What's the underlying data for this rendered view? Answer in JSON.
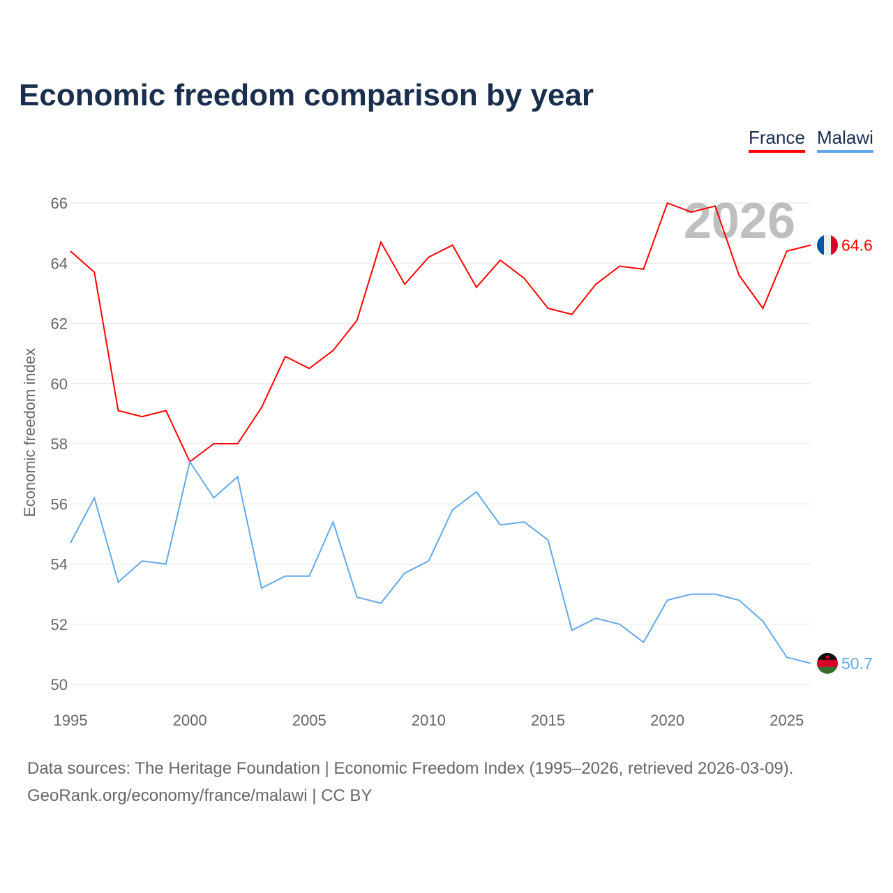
{
  "chart_data": {
    "type": "line",
    "title": "Economic freedom comparison by year",
    "xlabel": "",
    "ylabel": "Economic freedom index",
    "xlim": [
      1995,
      2026
    ],
    "ylim": [
      50,
      66
    ],
    "yticks": [
      50,
      52,
      54,
      56,
      58,
      60,
      62,
      64,
      66
    ],
    "xticks": [
      1995,
      2000,
      2005,
      2010,
      2015,
      2020,
      2025
    ],
    "grid": true,
    "legend_placement": "top-right",
    "current_year_label": "2026",
    "x": [
      1995,
      1996,
      1997,
      1998,
      1999,
      2000,
      2001,
      2002,
      2003,
      2004,
      2005,
      2006,
      2007,
      2008,
      2009,
      2010,
      2011,
      2012,
      2013,
      2014,
      2015,
      2016,
      2017,
      2018,
      2019,
      2020,
      2021,
      2022,
      2023,
      2024,
      2025,
      2026
    ],
    "series": [
      {
        "name": "France",
        "color": "#ff0000",
        "end_label": "64.6",
        "values": [
          64.4,
          63.7,
          59.1,
          58.9,
          59.1,
          57.4,
          58.0,
          58.0,
          59.2,
          60.9,
          60.5,
          61.1,
          62.1,
          64.7,
          63.3,
          64.2,
          64.6,
          63.2,
          64.1,
          63.5,
          62.5,
          62.3,
          63.3,
          63.9,
          63.8,
          66.0,
          65.7,
          65.9,
          63.6,
          62.5,
          64.4,
          64.6
        ]
      },
      {
        "name": "Malawi",
        "color": "#62a8e8",
        "end_label": "50.7",
        "values": [
          54.7,
          56.2,
          53.4,
          54.1,
          54.0,
          57.4,
          56.2,
          56.9,
          53.2,
          53.6,
          53.6,
          55.4,
          52.9,
          52.7,
          53.7,
          54.1,
          55.8,
          56.4,
          55.3,
          55.4,
          54.8,
          51.8,
          52.2,
          52.0,
          51.4,
          52.8,
          53.0,
          53.0,
          52.8,
          52.1,
          50.9,
          50.7
        ]
      }
    ]
  },
  "footer": {
    "line1": "Data sources: The Heritage Foundation | Economic Freedom Index (1995–2026, retrieved 2026-03-09).",
    "line2": "GeoRank.org/economy/france/malawi | CC BY"
  }
}
